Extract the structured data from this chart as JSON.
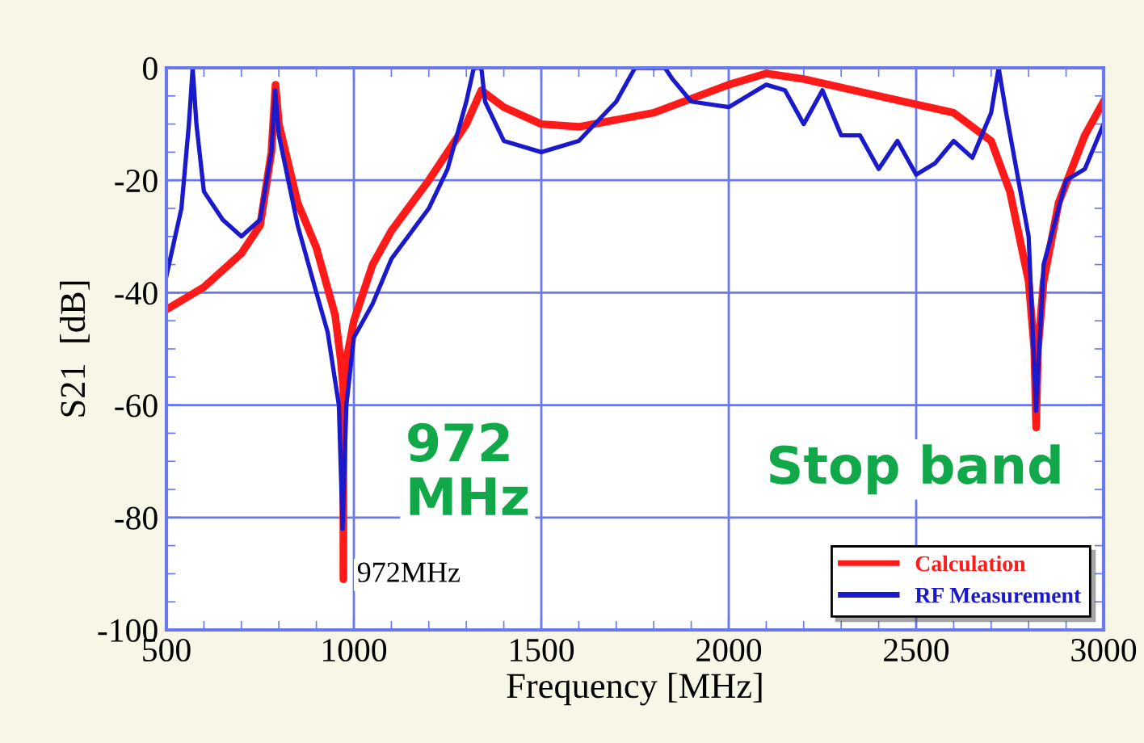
{
  "chart_data": {
    "type": "line",
    "xlabel": "Frequency [MHz]",
    "ylabel": "S21  [dB]",
    "xlim": [
      500,
      3000
    ],
    "xticks": [
      500,
      1000,
      1500,
      2000,
      2500,
      3000
    ],
    "ylim": [
      -100,
      0
    ],
    "yticks": [
      -100,
      -80,
      -60,
      -40,
      -20,
      0
    ],
    "grid": true,
    "legend": "bottom right",
    "line_style": "solid",
    "marker": "none",
    "series": [
      {
        "name": "Calculation",
        "color": "#ff1a1a",
        "x": [
          500,
          600,
          700,
          750,
          780,
          791,
          800,
          850,
          900,
          950,
          965,
          972,
          972,
          972,
          980,
          1000,
          1050,
          1100,
          1200,
          1300,
          1340,
          1400,
          1500,
          1600,
          1800,
          2000,
          2100,
          2200,
          2400,
          2600,
          2700,
          2750,
          2800,
          2815,
          2820,
          2825,
          2840,
          2880,
          2950,
          3000
        ],
        "values": [
          -43,
          -39,
          -33,
          -28,
          -15,
          -3,
          -10,
          -24,
          -32,
          -44,
          -52,
          -57,
          -91,
          -57,
          -52,
          -45,
          -35,
          -29,
          -20,
          -10,
          -4,
          -7,
          -10,
          -10.5,
          -8,
          -3,
          -1,
          -2,
          -5,
          -8,
          -13,
          -22,
          -38,
          -50,
          -64,
          -50,
          -38,
          -24,
          -12,
          -6
        ]
      },
      {
        "name": "RF Measurement",
        "color": "#1a1acc",
        "x": [
          500,
          540,
          560,
          570,
          580,
          600,
          650,
          700,
          750,
          780,
          790,
          800,
          850,
          900,
          930,
          960,
          970,
          980,
          1000,
          1050,
          1100,
          1200,
          1250,
          1300,
          1320,
          1340,
          1350,
          1400,
          1500,
          1600,
          1700,
          1750,
          1800,
          1830,
          1850,
          1900,
          2000,
          2050,
          2100,
          2150,
          2200,
          2250,
          2300,
          2350,
          2400,
          2450,
          2500,
          2550,
          2600,
          2650,
          2700,
          2720,
          2740,
          2800,
          2820,
          2840,
          2900,
          2950,
          3000
        ],
        "values": [
          -37,
          -25,
          -10,
          0,
          -10,
          -22,
          -27,
          -30,
          -27,
          -15,
          -4,
          -12,
          -28,
          -40,
          -47,
          -60,
          -82,
          -60,
          -48,
          -42,
          -34,
          -25,
          -18,
          -6,
          0,
          0,
          -6,
          -13,
          -15,
          -13,
          -6,
          0,
          0,
          0,
          -2,
          -6,
          -7,
          -5,
          -3,
          -4,
          -10,
          -4,
          -12,
          -12,
          -18,
          -13,
          -19,
          -17,
          -13,
          -16,
          -8,
          0,
          -8,
          -30,
          -61,
          -35,
          -20,
          -18,
          -10
        ]
      }
    ],
    "annotations": [
      "972\nMHz",
      "Stop band",
      {
        "text": "972MHz",
        "x": 972,
        "y": -91
      }
    ]
  }
}
